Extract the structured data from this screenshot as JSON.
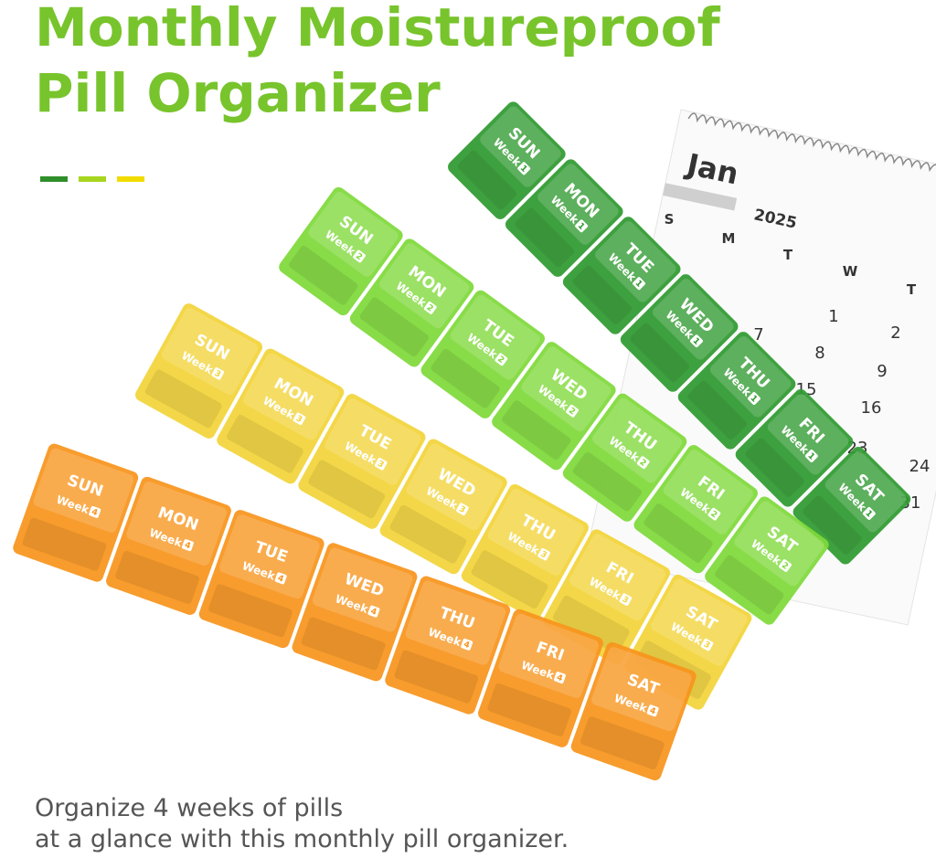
{
  "header": {
    "title_lines": [
      "Monthly Moistureproof",
      "Pill Organizer"
    ]
  },
  "calendar": {
    "month": "Jan",
    "year": "2025",
    "weekdays": [
      "S",
      "M",
      "T",
      "W",
      "T"
    ],
    "dates": [
      "1",
      "2",
      "7",
      "8",
      "9",
      "15",
      "16",
      "23",
      "24",
      "31"
    ]
  },
  "organizers": [
    {
      "color": "#2f9a30",
      "days": [
        "SUN",
        "MON",
        "TUE",
        "WED",
        "THU",
        "FRI",
        "SAT"
      ],
      "week": "Week",
      "number": "1"
    },
    {
      "color": "#7fd93a",
      "days": [
        "SUN",
        "MON",
        "TUE",
        "WED",
        "THU",
        "FRI",
        "SAT"
      ],
      "week": "Week",
      "number": "2"
    },
    {
      "color": "#f2d43a",
      "days": [
        "SUN",
        "MON",
        "TUE",
        "WED",
        "THU",
        "FRI",
        "SAT"
      ],
      "week": "Week",
      "number": "3"
    },
    {
      "color": "#f7941d",
      "days": [
        "SUN",
        "MON",
        "TUE",
        "WED",
        "THU",
        "FRI",
        "SAT"
      ],
      "week": "Week",
      "number": "4"
    }
  ],
  "caption": [
    "Organize 4 weeks of pills",
    "at a glance with this monthly pill organizer."
  ]
}
